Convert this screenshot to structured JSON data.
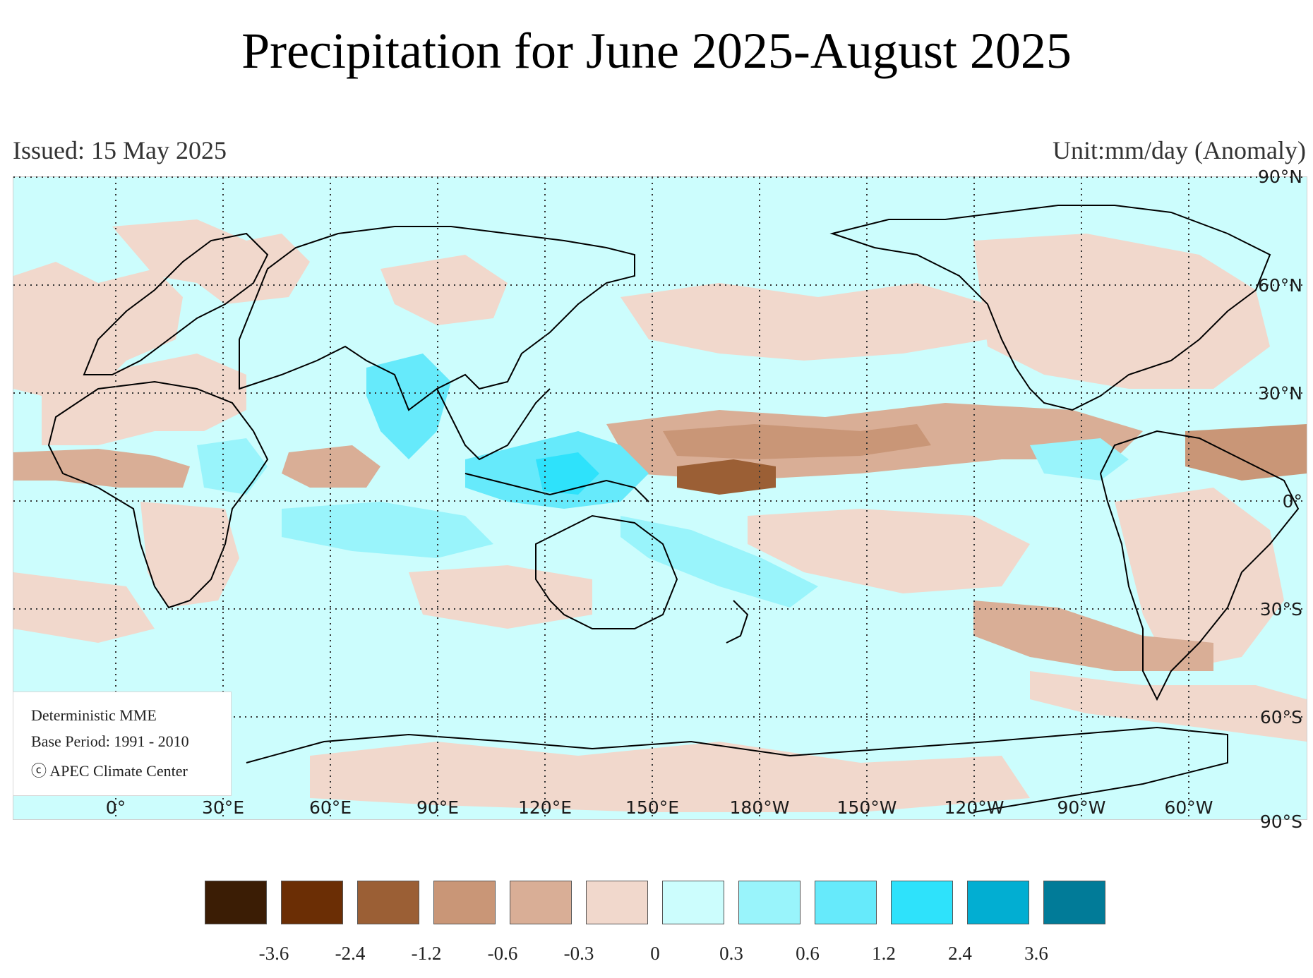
{
  "title": "Precipitation for June 2025-August 2025",
  "issued": "Issued: 15 May 2025",
  "unit": "Unit:mm/day (Anomaly)",
  "info": {
    "line1": "Deterministic MME",
    "line2": "Base Period: 1991 - 2010",
    "line3": "ⓒ APEC Climate Center"
  },
  "lon_labels": [
    "0°",
    "30°E",
    "60°E",
    "90°E",
    "120°E",
    "150°E",
    "180°W",
    "150°W",
    "120°W",
    "90°W",
    "60°W"
  ],
  "lat_labels": [
    "90°N",
    "60°N",
    "30°N",
    "0°",
    "30°S",
    "60°S",
    "90°S"
  ],
  "legend": {
    "colors": [
      "#3b1d05",
      "#6b2e05",
      "#9b5f35",
      "#c99677",
      "#d9ae96",
      "#f1d8cc",
      "#ccfdfd",
      "#99f4fb",
      "#66eafb",
      "#2ee2fb",
      "#02aed2",
      "#017b98"
    ],
    "ticks": [
      "-3.6",
      "-2.4",
      "-1.2",
      "-0.6",
      "-0.3",
      "0",
      "0.3",
      "0.6",
      "1.2",
      "2.4",
      "3.6"
    ]
  },
  "map_colors": {
    "background": "#ccfdfd",
    "dry_light": "#f1d8cc",
    "dry_medium": "#d9ae96",
    "dry_strong": "#c99677",
    "dry_heavy": "#9b5f35",
    "wet_light": "#99f4fb",
    "wet_medium": "#66eafb",
    "wet_strong": "#2ee2fb",
    "coastline": "#000000",
    "gridline": "#333333"
  }
}
